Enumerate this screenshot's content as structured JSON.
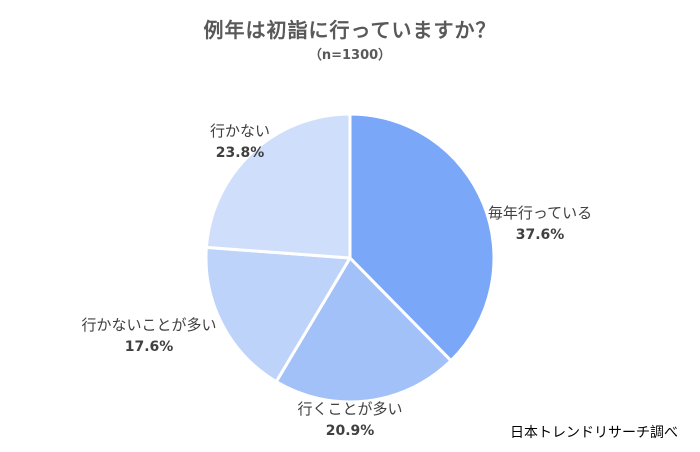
{
  "chart_data": {
    "type": "pie",
    "title": "例年は初詣に行っていますか？",
    "subtitle": "（n=1300）",
    "slices": [
      {
        "label": "毎年行っている",
        "value": 37.6,
        "value_label": "37.6%",
        "color": "#7aa7f7"
      },
      {
        "label": "行くことが多い",
        "value": 20.9,
        "value_label": "20.9%",
        "color": "#a2c1f8"
      },
      {
        "label": "行かないことが多い",
        "value": 17.6,
        "value_label": "17.6%",
        "color": "#bdd3f9"
      },
      {
        "label": "行かない",
        "value": 23.8,
        "value_label": "23.8%",
        "color": "#cfdffb"
      }
    ]
  },
  "source": "日本トレンドリサーチ調べ"
}
